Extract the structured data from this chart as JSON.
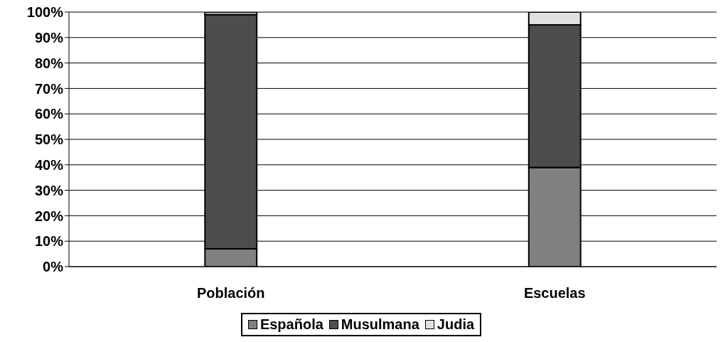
{
  "chart_data": {
    "type": "bar",
    "stacked": true,
    "categories": [
      "Población",
      "Escuelas"
    ],
    "series": [
      {
        "name": "Española",
        "color": "#808080",
        "values": [
          7,
          39
        ]
      },
      {
        "name": "Musulmana",
        "color": "#4d4d4d",
        "values": [
          92,
          56
        ]
      },
      {
        "name": "Judia",
        "color": "#e0e0e0",
        "values": [
          1,
          5
        ]
      }
    ],
    "ylim": [
      0,
      100
    ],
    "yticks": [
      {
        "value": 0,
        "label": "0%"
      },
      {
        "value": 10,
        "label": "10%"
      },
      {
        "value": 20,
        "label": "20%"
      },
      {
        "value": 30,
        "label": "30%"
      },
      {
        "value": 40,
        "label": "40%"
      },
      {
        "value": 50,
        "label": "50%"
      },
      {
        "value": 60,
        "label": "60%"
      },
      {
        "value": 70,
        "label": "70%"
      },
      {
        "value": 80,
        "label": "80%"
      },
      {
        "value": 90,
        "label": "90%"
      },
      {
        "value": 100,
        "label": "100%"
      }
    ],
    "grid": "y",
    "legend": "bottom"
  }
}
